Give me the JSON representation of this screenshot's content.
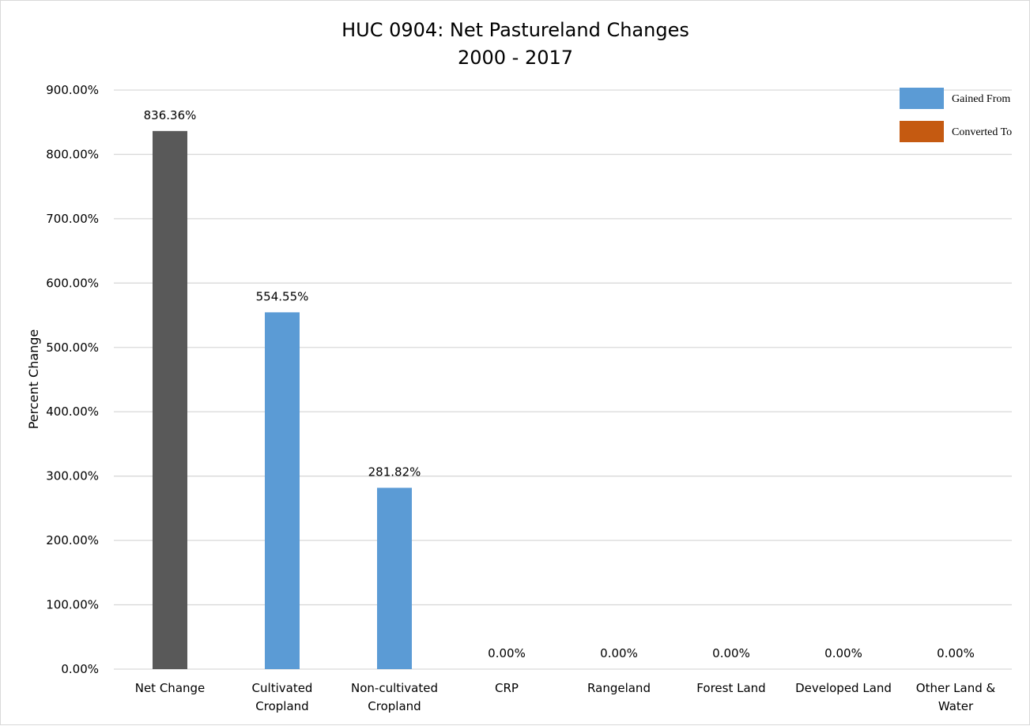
{
  "chart_data": {
    "type": "bar",
    "title": "HUC 0904: Net Pastureland Changes",
    "subtitle": "2000 - 2017",
    "ylabel": "Percent Change",
    "xlabel": "",
    "ylim": [
      0,
      900
    ],
    "yticks": [
      0,
      100,
      200,
      300,
      400,
      500,
      600,
      700,
      800,
      900
    ],
    "ytick_labels": [
      "0.00%",
      "100.00%",
      "200.00%",
      "300.00%",
      "400.00%",
      "500.00%",
      "600.00%",
      "700.00%",
      "800.00%",
      "900.00%"
    ],
    "grid": true,
    "legend_position": "top-right",
    "legend": [
      {
        "name": "Gained From",
        "color": "#5b9bd5"
      },
      {
        "name": "Converted To",
        "color": "#c55a11"
      }
    ],
    "categories": [
      [
        "Net Change"
      ],
      [
        "Cultivated",
        "Cropland"
      ],
      [
        "Non-cultivated",
        "Cropland"
      ],
      [
        "CRP"
      ],
      [
        "Rangeland"
      ],
      [
        "Forest Land"
      ],
      [
        "Developed Land"
      ],
      [
        "Other Land &",
        "Water"
      ]
    ],
    "values": [
      836.36,
      554.55,
      281.82,
      0,
      0,
      0,
      0,
      0
    ],
    "data_labels": [
      "836.36%",
      "554.55%",
      "281.82%",
      "0.00%",
      "0.00%",
      "0.00%",
      "0.00%",
      "0.00%"
    ],
    "bar_colors": [
      "#595959",
      "#5b9bd5",
      "#5b9bd5",
      "#5b9bd5",
      "#5b9bd5",
      "#5b9bd5",
      "#5b9bd5",
      "#5b9bd5"
    ],
    "gridline_color": "#d9d9d9"
  }
}
